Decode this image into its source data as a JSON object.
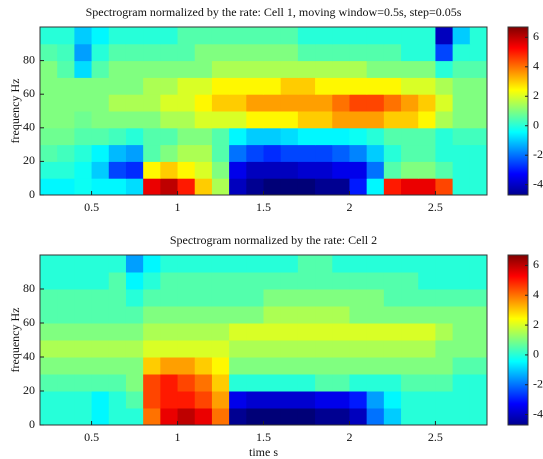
{
  "chart_data": [
    {
      "type": "heatmap",
      "title": "Spectrogram normalized by the rate: Cell 1, moving window=0.5s, step=0.05s",
      "ylabel": "frequency Hz",
      "colormap": "jet",
      "x": [
        0.25,
        0.35,
        0.45,
        0.55,
        0.65,
        0.75,
        0.85,
        0.95,
        1.05,
        1.15,
        1.25,
        1.35,
        1.45,
        1.55,
        1.65,
        1.75,
        1.85,
        1.95,
        2.05,
        2.15,
        2.25,
        2.35,
        2.45,
        2.55,
        2.65,
        2.75
      ],
      "y": [
        5,
        15,
        25,
        35,
        45,
        55,
        65,
        75,
        85,
        95
      ],
      "z": [
        [
          -0.5,
          -0.5,
          -0.3,
          -0.5,
          -0.5,
          -0.8,
          5.5,
          6,
          5,
          3,
          1.5,
          -4,
          -4.5,
          -4.8,
          -4.8,
          -4.8,
          -4.5,
          -4.5,
          -3,
          -0.5,
          5,
          5.5,
          5.5,
          4.5,
          0,
          0
        ],
        [
          0,
          0,
          -0.3,
          -1,
          -2.5,
          -2.8,
          2.5,
          3,
          2.5,
          2,
          1,
          -3.5,
          -4,
          -4,
          -4,
          -3.8,
          -3.8,
          -3.5,
          -3.5,
          -2,
          0.5,
          1,
          1,
          0.5,
          0,
          0
        ],
        [
          0.5,
          0.3,
          0,
          -0.5,
          -1.2,
          -1.5,
          0.5,
          1,
          1.5,
          1.5,
          0.5,
          -2,
          -2.5,
          -2.8,
          -2.5,
          -2.5,
          -2.5,
          -2.2,
          -1.8,
          -1,
          0,
          0.5,
          0.5,
          0,
          0,
          0
        ],
        [
          0.8,
          0.8,
          0.5,
          0.5,
          0.3,
          0,
          0.5,
          0.5,
          1,
          1,
          0.5,
          -0.5,
          -1,
          -1,
          -0.8,
          -0.5,
          -0.5,
          -0.5,
          -0.3,
          0,
          0.5,
          0.5,
          0.5,
          0,
          0.3,
          0.3
        ],
        [
          1,
          1,
          0.8,
          1,
          1,
          1,
          1,
          1.5,
          1.5,
          2,
          2,
          2,
          2.5,
          2.5,
          2.5,
          3,
          3,
          3.5,
          3.5,
          3.5,
          3,
          3,
          2.5,
          1.5,
          1,
          1
        ],
        [
          1,
          1,
          1,
          1,
          1.5,
          1.5,
          1.5,
          2,
          2,
          2.5,
          3,
          3,
          3.5,
          3.5,
          3.5,
          3.5,
          3.5,
          4,
          4.5,
          4.5,
          4,
          3.5,
          3,
          2,
          1,
          1
        ],
        [
          1,
          1,
          1,
          1,
          1,
          1,
          1.5,
          1.5,
          2,
          2,
          2.5,
          2.5,
          2.5,
          2.5,
          3,
          3,
          2.5,
          2.5,
          2.5,
          2.5,
          2.5,
          2,
          2,
          1.5,
          1,
          1
        ],
        [
          1,
          0.5,
          -0.8,
          0.5,
          1,
          1,
          1,
          1,
          1,
          1,
          1.5,
          1.5,
          1.5,
          1.5,
          1.5,
          1.5,
          1.5,
          1.5,
          1.5,
          1,
          1,
          1,
          1,
          0,
          0.5,
          0.5
        ],
        [
          0.5,
          0.3,
          -1.5,
          0,
          0.5,
          0.5,
          0.5,
          0.5,
          0.5,
          1,
          1,
          1,
          1,
          1,
          1,
          0.5,
          0.5,
          0.5,
          0.5,
          0.5,
          0.5,
          0,
          0,
          -2.5,
          0,
          0
        ],
        [
          0,
          0,
          -1,
          -0.5,
          0,
          0,
          0,
          0,
          0.5,
          0.5,
          0.5,
          0.5,
          0.5,
          0.5,
          0.5,
          0,
          0,
          0,
          0,
          0,
          0,
          0,
          0,
          -4,
          -1,
          0
        ]
      ],
      "xlim": [
        0.2,
        2.8
      ],
      "ylim": [
        0,
        100
      ],
      "xticks": [
        0.5,
        1,
        1.5,
        2,
        2.5
      ],
      "yticks": [
        0,
        20,
        40,
        60,
        80
      ],
      "clim": [
        -4.7,
        6.7
      ],
      "cticks": [
        -4,
        -2,
        0,
        2,
        4,
        6
      ]
    },
    {
      "type": "heatmap",
      "title": "Spectrogram normalized by the rate: Cell 2",
      "xlabel": "time s",
      "ylabel": "frequency Hz",
      "colormap": "jet",
      "x": [
        0.25,
        0.35,
        0.45,
        0.55,
        0.65,
        0.75,
        0.85,
        0.95,
        1.05,
        1.15,
        1.25,
        1.35,
        1.45,
        1.55,
        1.65,
        1.75,
        1.85,
        1.95,
        2.05,
        2.15,
        2.25,
        2.35,
        2.45,
        2.55,
        2.65,
        2.75
      ],
      "y": [
        5,
        15,
        25,
        35,
        45,
        55,
        65,
        75,
        85,
        95
      ],
      "z": [
        [
          0,
          0,
          0,
          -0.5,
          0,
          0,
          4,
          5.5,
          6,
          5.5,
          4,
          -4.5,
          -4.8,
          -4.8,
          -4.8,
          -4.8,
          -4.5,
          -4.5,
          -4,
          -2,
          -1,
          0,
          0,
          0,
          0,
          0
        ],
        [
          0,
          0,
          0,
          -0.5,
          0,
          0.5,
          4.5,
          5,
          5,
          4.5,
          3.5,
          -3.5,
          -3.8,
          -3.8,
          -3.8,
          -3.8,
          -3.5,
          -3.5,
          -3,
          -1.5,
          -0.5,
          0,
          0,
          0,
          0,
          0
        ],
        [
          0.5,
          0.5,
          0.5,
          0.5,
          0.5,
          1,
          4.5,
          5,
          4.5,
          4,
          3,
          0,
          0,
          0,
          0,
          0,
          0.5,
          0.5,
          0,
          0,
          0,
          0.5,
          0.5,
          0.5,
          0,
          0
        ],
        [
          1,
          1,
          1,
          1,
          1,
          1,
          3,
          3.5,
          3.5,
          3,
          2.5,
          1,
          1,
          1,
          1,
          1,
          1,
          1,
          1,
          1,
          1,
          1,
          1,
          1,
          0.5,
          0.5
        ],
        [
          1.5,
          1.5,
          1.5,
          1.5,
          1.5,
          1.5,
          2,
          2,
          2,
          2,
          2,
          1.5,
          1.5,
          1.5,
          1.5,
          1.5,
          1.5,
          1.5,
          1.5,
          1.5,
          1.5,
          1.5,
          1.5,
          1,
          1,
          1
        ],
        [
          1,
          1,
          1,
          1,
          1,
          1,
          1.5,
          1.5,
          1.5,
          1.5,
          1.5,
          2,
          2,
          2,
          2,
          2,
          2,
          2,
          2,
          2,
          2,
          2,
          2,
          1.5,
          1,
          1
        ],
        [
          0.5,
          0.5,
          0.5,
          0.5,
          0.5,
          0.5,
          1,
          1,
          1,
          1,
          1,
          1,
          1,
          1.5,
          1.5,
          1.5,
          1.5,
          1.5,
          1,
          1,
          1,
          1,
          1,
          1,
          1,
          1
        ],
        [
          0.5,
          0.5,
          0.5,
          0.5,
          0.5,
          0,
          0.5,
          0.5,
          0.5,
          0.5,
          0.5,
          0.5,
          0.5,
          1,
          1,
          1,
          1,
          1,
          1,
          1,
          0.5,
          0.5,
          0.5,
          0.5,
          0.5,
          0.5
        ],
        [
          0,
          0,
          0,
          0,
          0.5,
          -0.5,
          0,
          0.5,
          0.5,
          0.5,
          0.5,
          0.5,
          0.5,
          0.5,
          0.5,
          0.5,
          0.5,
          0.5,
          0.5,
          0.5,
          0.5,
          0.5,
          0,
          0,
          0,
          0
        ],
        [
          0,
          0,
          0,
          0,
          0,
          -1.5,
          -0.5,
          0,
          0,
          0,
          0,
          0,
          0,
          0,
          0,
          0.5,
          0.5,
          0,
          0,
          0,
          0,
          0,
          0,
          0,
          0,
          0
        ]
      ],
      "xlim": [
        0.2,
        2.8
      ],
      "ylim": [
        0,
        100
      ],
      "xticks": [
        0.5,
        1,
        1.5,
        2,
        2.5
      ],
      "yticks": [
        0,
        20,
        40,
        60,
        80
      ],
      "clim": [
        -4.7,
        6.7
      ],
      "cticks": [
        -4,
        -2,
        0,
        2,
        4,
        6
      ]
    }
  ]
}
